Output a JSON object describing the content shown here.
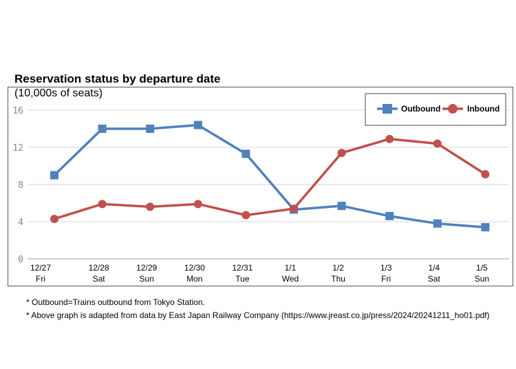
{
  "chart_data": {
    "type": "line",
    "title": "Reservation status by departure date",
    "ylabel": "(10,000s of seats)",
    "xlabel": "",
    "ylim": [
      0,
      16
    ],
    "yticks": [
      "0",
      "4",
      "8",
      "12",
      "16"
    ],
    "categories": [
      {
        "date": "12/27",
        "day": "Fri"
      },
      {
        "date": "12/28",
        "day": "Sat"
      },
      {
        "date": "12/29",
        "day": "Sun"
      },
      {
        "date": "12/30",
        "day": "Mon"
      },
      {
        "date": "12/31",
        "day": "Tue"
      },
      {
        "date": "1/1",
        "day": "Wed"
      },
      {
        "date": "1/2",
        "day": "Thu"
      },
      {
        "date": "1/3",
        "day": "Fri"
      },
      {
        "date": "1/4",
        "day": "Sat"
      },
      {
        "date": "1/5",
        "day": "Sun"
      }
    ],
    "series": [
      {
        "name": "Outbound",
        "color": "#4f81bd",
        "marker": "square",
        "values": [
          9.0,
          14.0,
          14.0,
          14.4,
          11.3,
          5.3,
          5.7,
          4.6,
          3.8,
          3.4
        ]
      },
      {
        "name": "Inbound",
        "color": "#c0504d",
        "marker": "circle",
        "values": [
          4.3,
          5.9,
          5.6,
          5.9,
          4.7,
          5.4,
          11.4,
          12.9,
          12.4,
          9.1
        ]
      }
    ],
    "legend_position": "top-right",
    "grid": true
  },
  "notes": [
    "* Outbound=Trains outbound from Tokyo Station.",
    "* Above graph is adapted from data by East Japan Railway Company (https://www.jreast.co.jp/press/2024/20241211_ho01.pdf)"
  ]
}
